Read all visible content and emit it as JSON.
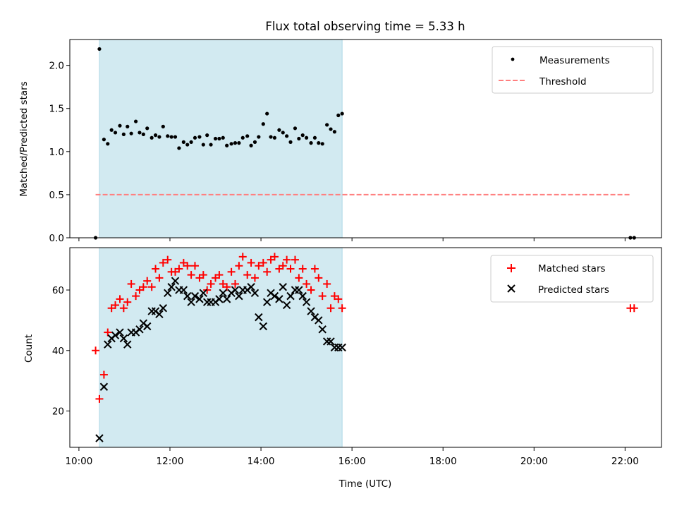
{
  "chart_data": [
    {
      "type": "scatter",
      "title": "Flux total observing time = 5.33 h",
      "xlabel": "",
      "ylabel": "Matched/Predicted stars",
      "xlim": [
        "09:48",
        "22:48"
      ],
      "ylim": [
        0,
        2.3
      ],
      "yticks": [
        "0.0",
        "0.5",
        "1.0",
        "1.5",
        "2.0"
      ],
      "shaded_interval": [
        "10:27",
        "15:47"
      ],
      "legend": {
        "placement": "top-right",
        "entries": [
          "Measurements",
          "Threshold"
        ]
      },
      "series": [
        {
          "name": "Measurements",
          "marker": "dot",
          "color": "#000000",
          "x": [
            "10:22",
            "10:27",
            "10:33",
            "10:38",
            "10:43",
            "10:48",
            "10:54",
            "10:59",
            "11:04",
            "11:09",
            "11:15",
            "11:20",
            "11:25",
            "11:30",
            "11:36",
            "11:41",
            "11:46",
            "11:51",
            "11:57",
            "12:02",
            "12:07",
            "12:12",
            "12:18",
            "12:23",
            "12:28",
            "12:33",
            "12:39",
            "12:44",
            "12:49",
            "12:54",
            "13:00",
            "13:05",
            "13:10",
            "13:15",
            "13:21",
            "13:26",
            "13:31",
            "13:36",
            "13:42",
            "13:47",
            "13:52",
            "13:57",
            "14:03",
            "14:08",
            "14:13",
            "14:18",
            "14:24",
            "14:29",
            "14:34",
            "14:39",
            "14:45",
            "14:50",
            "14:55",
            "15:00",
            "15:06",
            "15:11",
            "15:16",
            "15:21",
            "15:27",
            "15:32",
            "15:37",
            "15:42",
            "15:47",
            "22:07",
            "22:12"
          ],
          "y": [
            0.0,
            2.19,
            1.14,
            1.09,
            1.25,
            1.22,
            1.3,
            1.2,
            1.29,
            1.21,
            1.35,
            1.22,
            1.2,
            1.27,
            1.16,
            1.19,
            1.17,
            1.29,
            1.18,
            1.17,
            1.17,
            1.04,
            1.11,
            1.08,
            1.11,
            1.16,
            1.17,
            1.08,
            1.19,
            1.08,
            1.15,
            1.15,
            1.16,
            1.07,
            1.09,
            1.1,
            1.1,
            1.16,
            1.18,
            1.07,
            1.11,
            1.17,
            1.32,
            1.44,
            1.17,
            1.16,
            1.25,
            1.22,
            1.18,
            1.11,
            1.27,
            1.15,
            1.19,
            1.16,
            1.1,
            1.16,
            1.1,
            1.09,
            1.31,
            1.26,
            1.23,
            1.42,
            1.44,
            0.0,
            0.0
          ]
        },
        {
          "name": "Threshold",
          "style": "dashed",
          "color": "#ff7f7f",
          "x": [
            "10:22",
            "22:07"
          ],
          "y": [
            0.5,
            0.5
          ]
        }
      ]
    },
    {
      "type": "scatter",
      "title": "",
      "xlabel": "Time (UTC)",
      "ylabel": "Count",
      "xlim": [
        "09:48",
        "22:48"
      ],
      "ylim": [
        8,
        74
      ],
      "yticks": [
        "20",
        "40",
        "60"
      ],
      "xticks": [
        "10:00",
        "12:00",
        "14:00",
        "16:00",
        "18:00",
        "20:00",
        "22:00"
      ],
      "shaded_interval": [
        "10:27",
        "15:47"
      ],
      "legend": {
        "placement": "top-right",
        "entries": [
          "Matched stars",
          "Predicted stars"
        ]
      },
      "series": [
        {
          "name": "Matched stars",
          "marker": "plus",
          "color": "#ff0000",
          "x": [
            "10:22",
            "10:27",
            "10:33",
            "10:38",
            "10:43",
            "10:48",
            "10:54",
            "10:59",
            "11:04",
            "11:09",
            "11:15",
            "11:20",
            "11:25",
            "11:30",
            "11:36",
            "11:41",
            "11:46",
            "11:51",
            "11:57",
            "12:02",
            "12:07",
            "12:12",
            "12:18",
            "12:23",
            "12:28",
            "12:33",
            "12:39",
            "12:44",
            "12:49",
            "12:54",
            "13:00",
            "13:05",
            "13:10",
            "13:15",
            "13:21",
            "13:26",
            "13:31",
            "13:36",
            "13:42",
            "13:47",
            "13:52",
            "13:57",
            "14:03",
            "14:08",
            "14:13",
            "14:18",
            "14:24",
            "14:29",
            "14:34",
            "14:39",
            "14:45",
            "14:50",
            "14:55",
            "15:00",
            "15:06",
            "15:11",
            "15:16",
            "15:21",
            "15:27",
            "15:32",
            "15:37",
            "15:42",
            "15:47",
            "22:07",
            "22:12"
          ],
          "y": [
            40,
            24,
            32,
            46,
            54,
            55,
            57,
            54,
            56,
            62,
            58,
            60,
            61,
            63,
            61,
            67,
            64,
            69,
            70,
            66,
            66,
            67,
            69,
            68,
            65,
            68,
            64,
            65,
            60,
            62,
            64,
            65,
            62,
            61,
            66,
            62,
            68,
            71,
            65,
            69,
            64,
            68,
            69,
            66,
            70,
            71,
            67,
            68,
            70,
            67,
            70,
            64,
            67,
            62,
            60,
            67,
            64,
            58,
            62,
            54,
            58,
            57,
            54,
            54,
            54
          ]
        },
        {
          "name": "Predicted stars",
          "marker": "x",
          "color": "#000000",
          "x": [
            "10:27",
            "10:33",
            "10:38",
            "10:43",
            "10:48",
            "10:54",
            "10:59",
            "11:04",
            "11:09",
            "11:15",
            "11:20",
            "11:25",
            "11:30",
            "11:36",
            "11:41",
            "11:46",
            "11:51",
            "11:57",
            "12:02",
            "12:07",
            "12:12",
            "12:18",
            "12:23",
            "12:28",
            "12:33",
            "12:39",
            "12:44",
            "12:49",
            "12:54",
            "13:00",
            "13:05",
            "13:10",
            "13:15",
            "13:21",
            "13:26",
            "13:31",
            "13:36",
            "13:42",
            "13:47",
            "13:52",
            "13:57",
            "14:03",
            "14:08",
            "14:13",
            "14:18",
            "14:24",
            "14:29",
            "14:34",
            "14:39",
            "14:45",
            "14:50",
            "14:55",
            "15:00",
            "15:06",
            "15:11",
            "15:16",
            "15:21",
            "15:27",
            "15:32",
            "15:37",
            "15:42",
            "15:47"
          ],
          "y": [
            11,
            28,
            42,
            44,
            45,
            46,
            44,
            42,
            46,
            46,
            47,
            49,
            48,
            53,
            53,
            52,
            54,
            59,
            61,
            63,
            60,
            60,
            58,
            56,
            58,
            57,
            59,
            56,
            56,
            56,
            57,
            59,
            57,
            59,
            60,
            58,
            60,
            60,
            61,
            59,
            51,
            48,
            56,
            59,
            58,
            57,
            61,
            55,
            58,
            60,
            60,
            58,
            56,
            53,
            51,
            50,
            47,
            43,
            43,
            41,
            41,
            41
          ]
        }
      ]
    }
  ]
}
